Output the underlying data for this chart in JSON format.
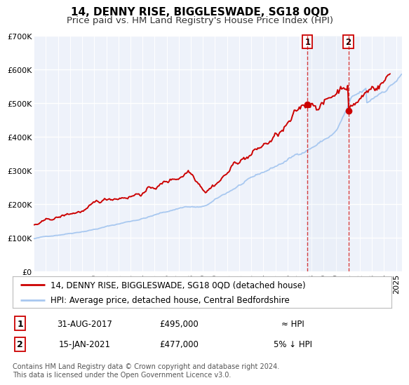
{
  "title": "14, DENNY RISE, BIGGLESWADE, SG18 0QD",
  "subtitle": "Price paid vs. HM Land Registry's House Price Index (HPI)",
  "ylim": [
    0,
    700000
  ],
  "yticks": [
    0,
    100000,
    200000,
    300000,
    400000,
    500000,
    600000,
    700000
  ],
  "ytick_labels": [
    "£0",
    "£100K",
    "£200K",
    "£300K",
    "£400K",
    "£500K",
    "£600K",
    "£700K"
  ],
  "xlim_start": 1995.0,
  "xlim_end": 2025.5,
  "xticks": [
    1995,
    1996,
    1997,
    1998,
    1999,
    2000,
    2001,
    2002,
    2003,
    2004,
    2005,
    2006,
    2007,
    2008,
    2009,
    2010,
    2011,
    2012,
    2013,
    2014,
    2015,
    2016,
    2017,
    2018,
    2019,
    2020,
    2021,
    2022,
    2023,
    2024,
    2025
  ],
  "background_color": "#ffffff",
  "plot_bg_color": "#eef2fa",
  "grid_color": "#ffffff",
  "hpi_line_color": "#a8c8f0",
  "price_line_color": "#cc0000",
  "sale1_x": 2017.664,
  "sale1_y": 495000,
  "sale2_x": 2021.04,
  "sale2_y": 477000,
  "vline_color": "#cc0000",
  "legend_label1": "14, DENNY RISE, BIGGLESWADE, SG18 0QD (detached house)",
  "legend_label2": "HPI: Average price, detached house, Central Bedfordshire",
  "note1_num": "1",
  "note1_date": "31-AUG-2017",
  "note1_price": "£495,000",
  "note1_hpi": "≈ HPI",
  "note2_num": "2",
  "note2_date": "15-JAN-2021",
  "note2_price": "£477,000",
  "note2_hpi": "5% ↓ HPI",
  "footer": "Contains HM Land Registry data © Crown copyright and database right 2024.\nThis data is licensed under the Open Government Licence v3.0.",
  "title_fontsize": 11,
  "subtitle_fontsize": 9.5,
  "tick_fontsize": 8,
  "legend_fontsize": 8.5,
  "note_fontsize": 8.5,
  "footer_fontsize": 7
}
